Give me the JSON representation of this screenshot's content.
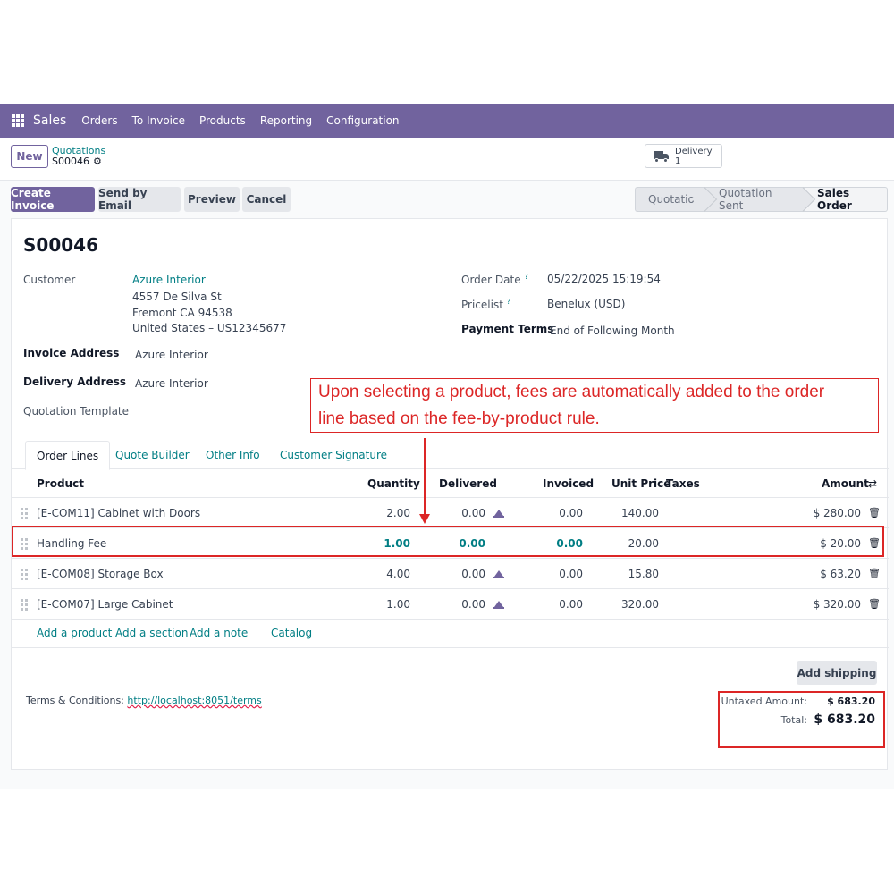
{
  "navbar": {
    "app_name": "Sales",
    "menu": [
      "Orders",
      "To Invoice",
      "Products",
      "Reporting",
      "Configuration"
    ]
  },
  "control_panel": {
    "new_label": "New",
    "breadcrumb_parent": "Quotations",
    "breadcrumb_current": "S00046",
    "smart_button": {
      "label": "Delivery",
      "count": "1"
    }
  },
  "actions": {
    "create_invoice": "Create Invoice",
    "send_email": "Send by Email",
    "preview": "Preview",
    "cancel": "Cancel",
    "stages": [
      "Quotation",
      "Quotation Sent",
      "Sales Order"
    ],
    "active_stage": "Sales Order"
  },
  "form": {
    "title": "S00046",
    "customer_label": "Customer",
    "customer_name": "Azure Interior",
    "customer_addr1": "4557 De Silva St",
    "customer_addr2": "Fremont CA 94538",
    "customer_addr3": "United States – US12345677",
    "invoice_address_label": "Invoice Address",
    "invoice_address": "Azure Interior",
    "delivery_address_label": "Delivery Address",
    "delivery_address": "Azure Interior",
    "quotation_template_label": "Quotation Template",
    "order_date_label": "Order Date",
    "order_date": "05/22/2025 15:19:54",
    "pricelist_label": "Pricelist",
    "pricelist": "Benelux (USD)",
    "payment_terms_label": "Payment Terms",
    "payment_terms": "End of Following Month",
    "help_mark": "?"
  },
  "tabs": [
    "Order Lines",
    "Quote Builder",
    "Other Info",
    "Customer Signature"
  ],
  "table": {
    "headers": {
      "product": "Product",
      "quantity": "Quantity",
      "delivered": "Delivered",
      "invoiced": "Invoiced",
      "unit_price": "Unit Price",
      "taxes": "Taxes",
      "amount": "Amount"
    },
    "rows": [
      {
        "product": "[E-COM11] Cabinet with Doors",
        "quantity": "2.00",
        "delivered": "0.00",
        "invoiced": "0.00",
        "unit_price": "140.00",
        "amount": "$ 280.00"
      },
      {
        "product": "Handling Fee",
        "quantity": "1.00",
        "delivered": "0.00",
        "invoiced": "0.00",
        "unit_price": "20.00",
        "amount": "$ 20.00"
      },
      {
        "product": "[E-COM08] Storage Box",
        "quantity": "4.00",
        "delivered": "0.00",
        "invoiced": "0.00",
        "unit_price": "15.80",
        "amount": "$ 63.20"
      },
      {
        "product": "[E-COM07] Large Cabinet",
        "quantity": "1.00",
        "delivered": "0.00",
        "invoiced": "0.00",
        "unit_price": "320.00",
        "amount": "$ 320.00"
      }
    ],
    "add_links": [
      "Add a product",
      "Add a section",
      "Add a note",
      "Catalog"
    ]
  },
  "footer": {
    "add_shipping": "Add shipping",
    "terms_label": "Terms & Conditions:",
    "terms_link": "http://localhost:8051/terms",
    "untaxed_label": "Untaxed Amount:",
    "untaxed_value": "$ 683.20",
    "total_label": "Total:",
    "total_value": "$ 683.20"
  },
  "annotation": {
    "line1": "Upon selecting a product, fees are automatically added to the order",
    "line2": "line based on the fee-by-product rule."
  },
  "colors": {
    "brand": "#71639e",
    "link": "#017e84",
    "annotation": "#dc2626"
  }
}
